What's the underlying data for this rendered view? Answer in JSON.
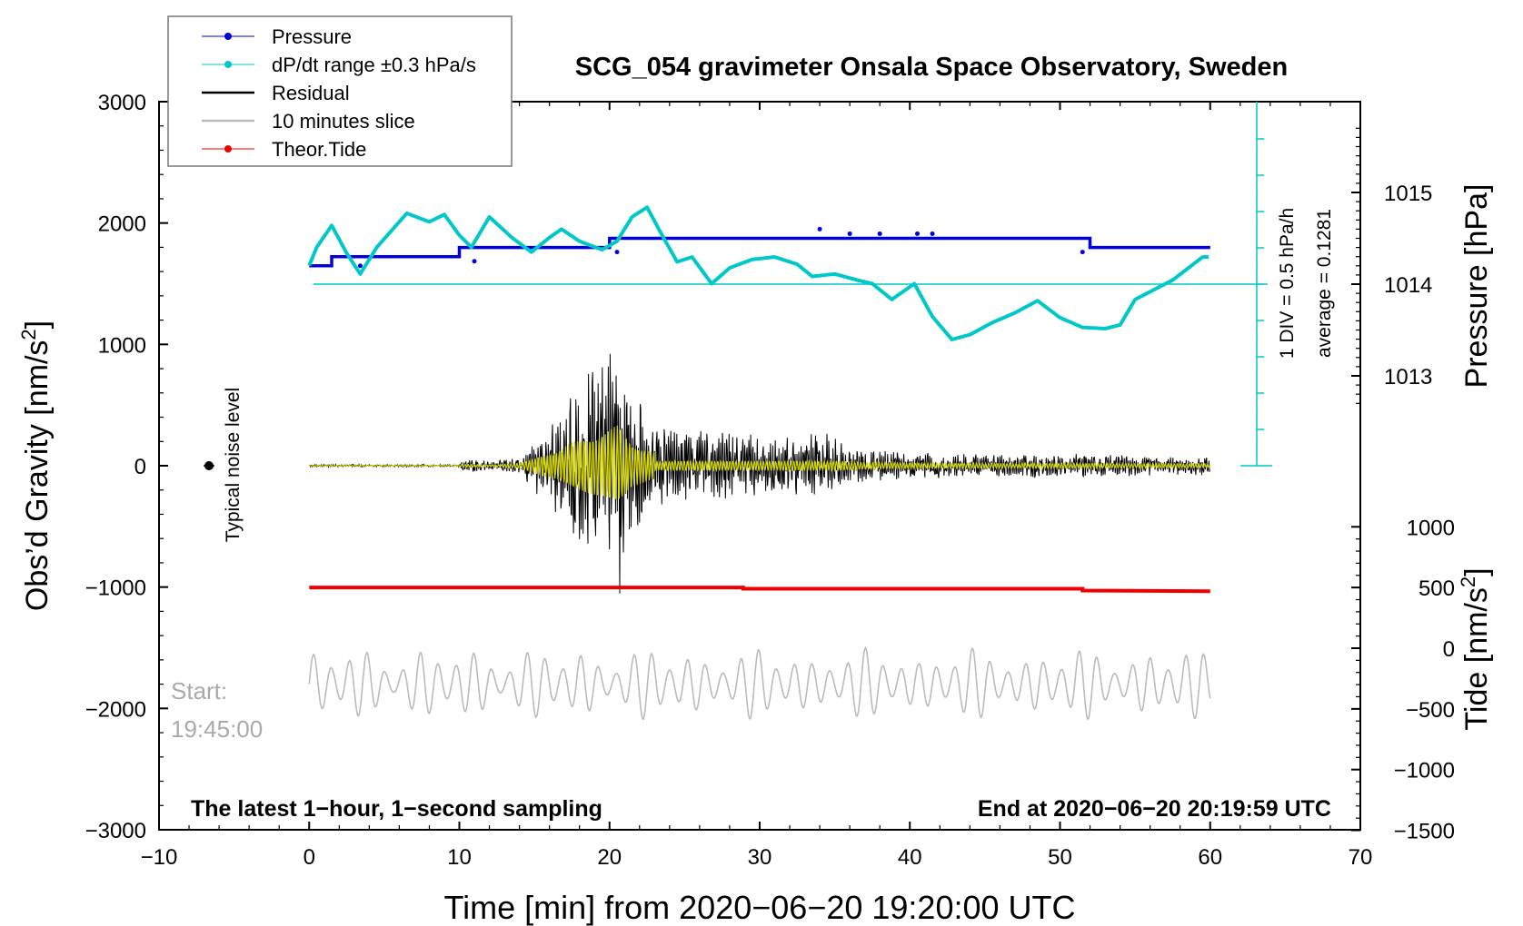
{
  "chart_data": {
    "type": "line",
    "title": "SCG_054 gravimeter Onsala Space Observatory, Sweden",
    "xlabel": "Time [min] from 2020−06−20 19:20:00 UTC",
    "ylabel": "Obs’d Gravity [nm/s",
    "ylabel_sup": "2",
    "ylabel_close": "]",
    "pressure_label": "Pressure [hPa]",
    "tide_label": "Tide [nm/s",
    "tide_label_sup": "2",
    "tide_label_close": "]",
    "xlim": [
      -10,
      70
    ],
    "ylim": [
      -3000,
      3000
    ],
    "x_ticks": [
      "−10",
      "0",
      "10",
      "20",
      "30",
      "40",
      "50",
      "60",
      "70"
    ],
    "y_ticks": [
      "3000",
      "2000",
      "1000",
      "0",
      "−1000",
      "−2000",
      "−3000"
    ],
    "pressure_ticks": [
      "1015",
      "1014",
      "1013"
    ],
    "tide_ticks": [
      "1000",
      "500",
      "0",
      "−500",
      "−1000",
      "−1500"
    ],
    "legend": [
      {
        "label": "Pressure",
        "color": "#0000dd"
      },
      {
        "label": "dP/dt range ±0.3 hPa/s",
        "color": "#00c8c8"
      },
      {
        "label": "Residual",
        "color": "#000000"
      },
      {
        "label": "10 minutes slice",
        "color": "#bbbbbb"
      },
      {
        "label": "Theor.Tide",
        "color": "#ee0000"
      }
    ],
    "noise_label": "Typical noise level",
    "start_label": "Start:",
    "start_time": "19:45:00",
    "sampling_note": "The latest 1−hour, 1−second sampling",
    "end_note": "End at 2020−06−20 20:19:59 UTC",
    "div_note": "1 DIV = 0.5 hPa/h",
    "avg_note": "average = 0.1281",
    "pressure_series": [
      [
        0,
        1014.2
      ],
      [
        1.5,
        1014.2
      ],
      [
        1.5,
        1014.3
      ],
      [
        10,
        1014.3
      ],
      [
        10,
        1014.4
      ],
      [
        20,
        1014.4
      ],
      [
        20,
        1014.5
      ],
      [
        52,
        1014.5
      ],
      [
        52,
        1014.4
      ],
      [
        60,
        1014.4
      ]
    ],
    "dpdt_series": [
      [
        0,
        1650
      ],
      [
        0.5,
        1800
      ],
      [
        1.5,
        1980
      ],
      [
        2.5,
        1750
      ],
      [
        3.4,
        1580
      ],
      [
        4.5,
        1800
      ],
      [
        6.5,
        2080
      ],
      [
        8,
        2010
      ],
      [
        9,
        2070
      ],
      [
        10,
        1900
      ],
      [
        10.8,
        1800
      ],
      [
        12,
        2050
      ],
      [
        13.5,
        1880
      ],
      [
        14.8,
        1760
      ],
      [
        16,
        1880
      ],
      [
        16.8,
        1950
      ],
      [
        18,
        1850
      ],
      [
        19.5,
        1780
      ],
      [
        20.5,
        1850
      ],
      [
        21.5,
        2050
      ],
      [
        22.5,
        2130
      ],
      [
        23.5,
        1900
      ],
      [
        24.5,
        1680
      ],
      [
        25.5,
        1720
      ],
      [
        26.8,
        1500
      ],
      [
        28,
        1630
      ],
      [
        29.5,
        1700
      ],
      [
        31,
        1720
      ],
      [
        32.5,
        1660
      ],
      [
        33.5,
        1560
      ],
      [
        35,
        1580
      ],
      [
        36.5,
        1530
      ],
      [
        37.5,
        1500
      ],
      [
        38.8,
        1370
      ],
      [
        40.3,
        1500
      ],
      [
        41.5,
        1230
      ],
      [
        42.8,
        1040
      ],
      [
        44,
        1080
      ],
      [
        45.5,
        1180
      ],
      [
        47,
        1260
      ],
      [
        48.5,
        1360
      ],
      [
        50,
        1220
      ],
      [
        51.5,
        1140
      ],
      [
        53,
        1130
      ],
      [
        54,
        1160
      ],
      [
        55,
        1370
      ],
      [
        57.5,
        1530
      ],
      [
        59.5,
        1720
      ],
      [
        60,
        1720
      ]
    ],
    "residual_envelope": [
      [
        0,
        10
      ],
      [
        10,
        10
      ],
      [
        10.2,
        60
      ],
      [
        12,
        40
      ],
      [
        14,
        70
      ],
      [
        15.5,
        300
      ],
      [
        16.5,
        400
      ],
      [
        17.5,
        700
      ],
      [
        18.5,
        800
      ],
      [
        19.5,
        900
      ],
      [
        20.5,
        1200
      ],
      [
        21.5,
        600
      ],
      [
        23,
        400
      ],
      [
        25,
        300
      ],
      [
        28,
        300
      ],
      [
        31,
        250
      ],
      [
        34,
        300
      ],
      [
        36,
        160
      ],
      [
        40,
        110
      ],
      [
        45,
        100
      ],
      [
        50,
        100
      ],
      [
        55,
        90
      ],
      [
        60,
        80
      ]
    ],
    "tide_series": [
      [
        0,
        500
      ],
      [
        28.9,
        500
      ],
      [
        28.9,
        490
      ],
      [
        51.5,
        490
      ],
      [
        51.5,
        475
      ],
      [
        60,
        470
      ]
    ],
    "slice_amplitude": 300,
    "slice_center": -1800
  }
}
